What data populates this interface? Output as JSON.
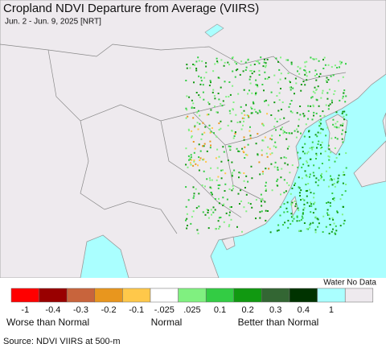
{
  "header": {
    "title": "Cropland NDVI Departure from Average (VIIRS)",
    "subtitle": "Jun. 2 - Jun. 9, 2025 [NRT]"
  },
  "legend": {
    "water_label": "Water No Data",
    "colors": [
      "#ff0000",
      "#990000",
      "#c8643c",
      "#e8961e",
      "#ffc84a",
      "#ffffff",
      "#80f080",
      "#33cc44",
      "#119911",
      "#336633",
      "#003300",
      "#aaffff",
      "#eeeaee"
    ],
    "labels": [
      "-1",
      "-0.4",
      "-0.3",
      "-0.2",
      "-0.1",
      "-.025",
      ".025",
      "0.1",
      "0.2",
      "0.3",
      "0.4",
      "1"
    ],
    "worse": "Worse than Normal",
    "normal": "Normal",
    "better": "Better than Normal"
  },
  "footer": {
    "source": "Source: NDVI VIIRS at 500-m"
  }
}
